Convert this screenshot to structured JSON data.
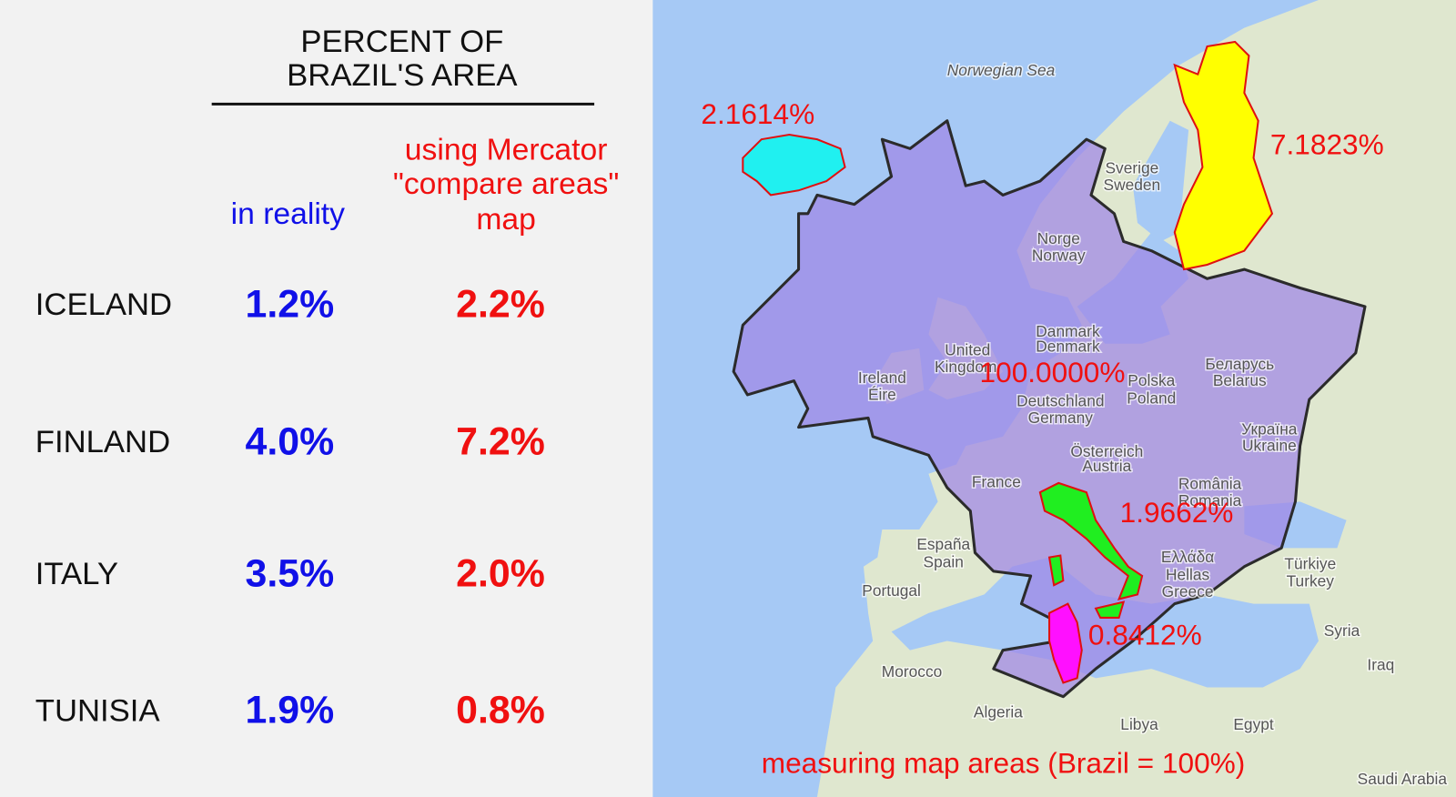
{
  "table": {
    "title": [
      "PERCENT OF",
      "BRAZIL'S AREA"
    ],
    "column_reality": "in reality",
    "column_mercator": [
      "using Mercator",
      "\"compare areas\"",
      "map"
    ],
    "rows": [
      {
        "country": "ICELAND",
        "reality": "1.2%",
        "mercator": "2.2%"
      },
      {
        "country": "FINLAND",
        "reality": "4.0%",
        "mercator": "7.2%"
      },
      {
        "country": "ITALY",
        "reality": "3.5%",
        "mercator": "2.0%"
      },
      {
        "country": "TUNISIA",
        "reality": "1.9%",
        "mercator": "0.8%"
      }
    ]
  },
  "map": {
    "place_labels": [
      "Norwegian Sea",
      "Sverige",
      "Sweden",
      "Norge",
      "Norway",
      "Danmark",
      "Denmark",
      "United",
      "Kingdom",
      "Ireland",
      "Éire",
      "Deutschland",
      "Germany",
      "Polska",
      "Poland",
      "Беларусь",
      "Belarus",
      "Україна",
      "Ukraine",
      "France",
      "Österreich",
      "Austria",
      "România",
      "Romania",
      "España",
      "Spain",
      "Portugal",
      "Ελλάδα",
      "Hellas",
      "Greece",
      "Türkiye",
      "Turkey",
      "Morocco",
      "Algeria",
      "Libya",
      "Egypt",
      "Syria",
      "Iraq",
      "Saudi Arabia"
    ],
    "area_labels": [
      "2.1614%",
      "7.1823%",
      "100.0000%",
      "1.9662%",
      "0.8412%"
    ],
    "caption": "measuring map areas (Brazil = 100%)"
  }
}
